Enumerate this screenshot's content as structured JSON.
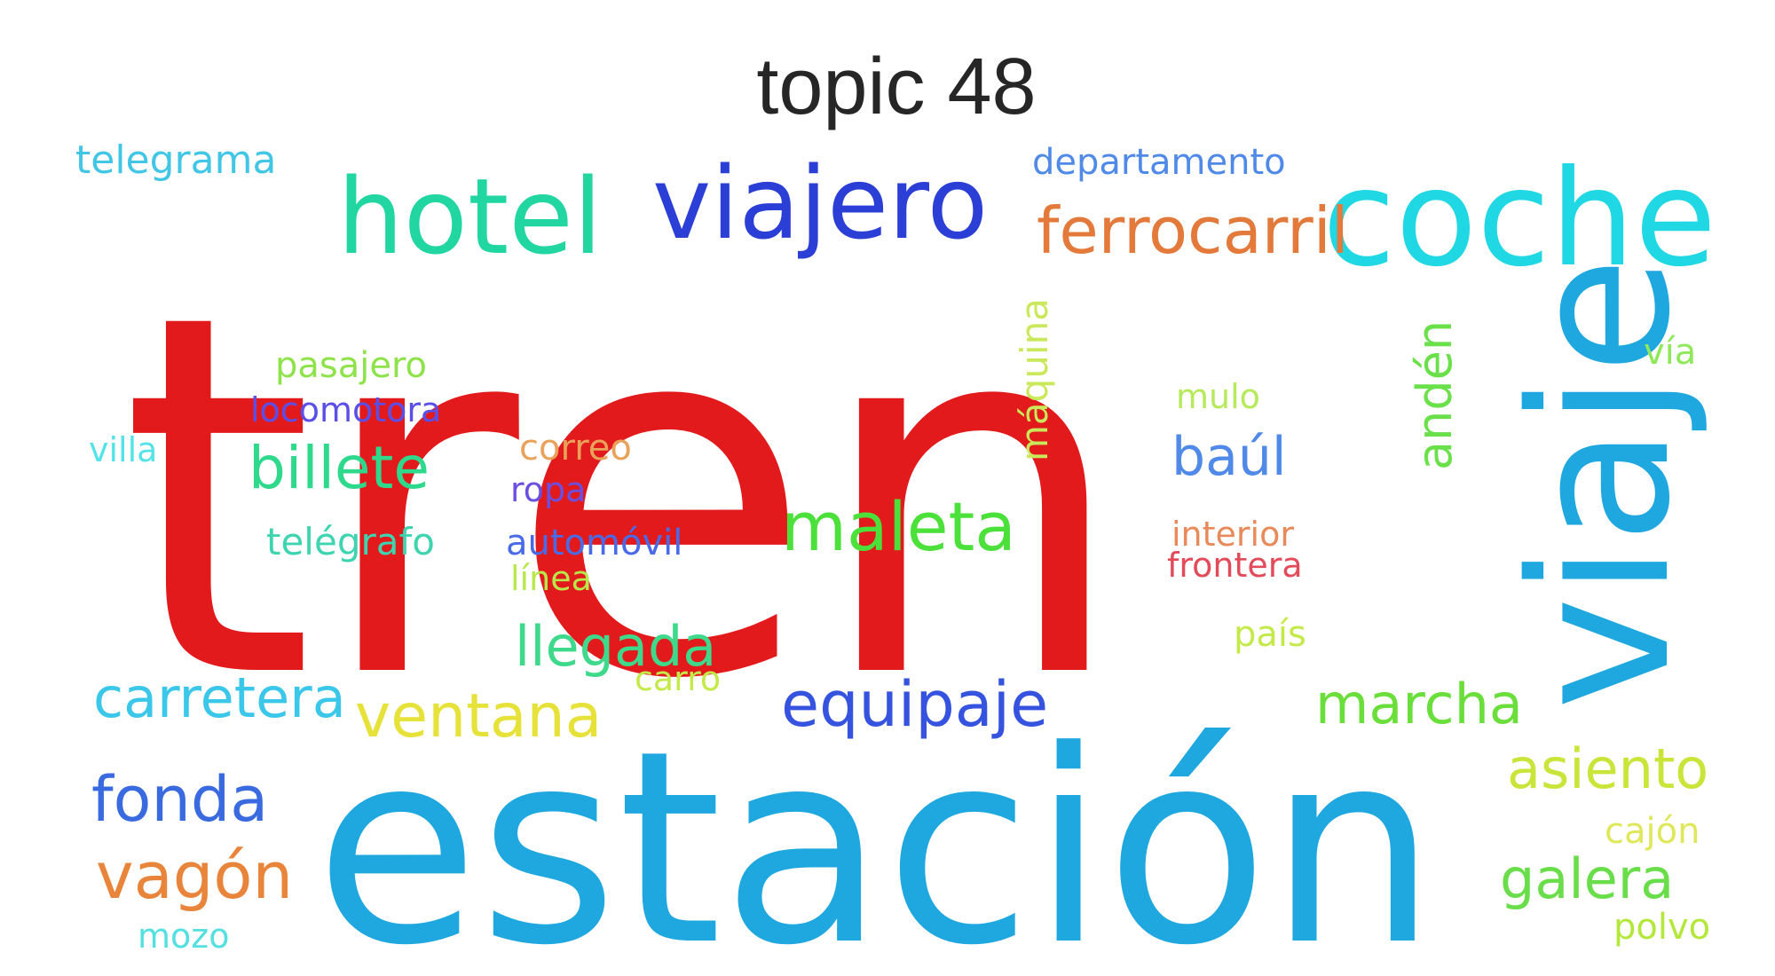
{
  "title": "topic 48",
  "words": [
    {
      "text": "tren",
      "color": "#e31a1c"
    },
    {
      "text": "estación",
      "color": "#1fa7df"
    },
    {
      "text": "viaje",
      "color": "#1fa7df"
    },
    {
      "text": "viajero",
      "color": "#2b3fd6"
    },
    {
      "text": "coche",
      "color": "#20d7e4"
    },
    {
      "text": "hotel",
      "color": "#22d6a2"
    },
    {
      "text": "ferrocarril",
      "color": "#e3793a"
    },
    {
      "text": "departamento",
      "color": "#4f8ae8"
    },
    {
      "text": "telegrama",
      "color": "#42c6e6"
    },
    {
      "text": "pasajero",
      "color": "#8fe34a"
    },
    {
      "text": "locomotora",
      "color": "#5a4fe8"
    },
    {
      "text": "villa",
      "color": "#54e3e8"
    },
    {
      "text": "billete",
      "color": "#2ed98c"
    },
    {
      "text": "telégrafo",
      "color": "#3ed4b0"
    },
    {
      "text": "correo",
      "color": "#e9a25a"
    },
    {
      "text": "ropa",
      "color": "#6a4fe0"
    },
    {
      "text": "automóvil",
      "color": "#4a6be8"
    },
    {
      "text": "línea",
      "color": "#b8e84a"
    },
    {
      "text": "llegada",
      "color": "#3ed98a"
    },
    {
      "text": "carro",
      "color": "#c4ea4a"
    },
    {
      "text": "máquina",
      "color": "#c9e85a"
    },
    {
      "text": "mulo",
      "color": "#b6ea5a"
    },
    {
      "text": "baúl",
      "color": "#4f8ae8"
    },
    {
      "text": "maleta",
      "color": "#4be03a"
    },
    {
      "text": "interior",
      "color": "#e98a5a"
    },
    {
      "text": "frontera",
      "color": "#e34a5a"
    },
    {
      "text": "país",
      "color": "#c4ea4a"
    },
    {
      "text": "andén",
      "color": "#6ae04a"
    },
    {
      "text": "vía",
      "color": "#8ee85a"
    },
    {
      "text": "carretera",
      "color": "#3ac7ea"
    },
    {
      "text": "ventana",
      "color": "#e7e23a"
    },
    {
      "text": "equipaje",
      "color": "#3553df"
    },
    {
      "text": "marcha",
      "color": "#6ade3a"
    },
    {
      "text": "asiento",
      "color": "#c9e53a"
    },
    {
      "text": "cajón",
      "color": "#dfe85a"
    },
    {
      "text": "galera",
      "color": "#6ade4a"
    },
    {
      "text": "polvo",
      "color": "#b3e83a"
    },
    {
      "text": "fonda",
      "color": "#3a6ae0"
    },
    {
      "text": "vagón",
      "color": "#e8853a"
    },
    {
      "text": "mozo",
      "color": "#54dfe0"
    }
  ]
}
